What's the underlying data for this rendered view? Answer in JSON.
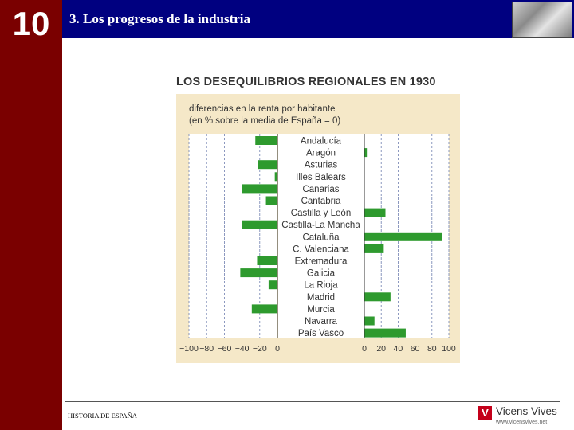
{
  "header": {
    "chapter_number": "10",
    "section_title": "3. Los progresos de la industria"
  },
  "footer": {
    "book_title": "HISTORIA DE ESPAÑA",
    "publisher_name": "Vicens Vives",
    "publisher_url": "www.vicensvives.net",
    "publisher_mark": "V"
  },
  "colors": {
    "sidebar": "#7a0000",
    "topbar": "#000080",
    "panel": "#f5e8c8",
    "bar": "#2e9a2e",
    "label_band": "#ffffff",
    "grid": "#6f7faf"
  },
  "chart_data": {
    "type": "bar",
    "orientation": "horizontal",
    "title": "LOS DESEQUILIBRIOS REGIONALES EN 1930",
    "subtitle_line1": "diferencias en la renta por habitante",
    "subtitle_line2": "(en % sobre la media de España = 0)",
    "categories": [
      "Andalucía",
      "Aragón",
      "Asturias",
      "Illes Balears",
      "Canarias",
      "Cantabria",
      "Castilla y León",
      "Castilla-La Mancha",
      "Cataluña",
      "C. Valenciana",
      "Extremadura",
      "Galicia",
      "La Rioja",
      "Madrid",
      "Murcia",
      "Navarra",
      "País Vasco"
    ],
    "values": [
      -25,
      3,
      -22,
      -3,
      -40,
      -13,
      25,
      -40,
      92,
      23,
      -23,
      -42,
      -10,
      31,
      -29,
      12,
      49
    ],
    "xlim": [
      -100,
      100
    ],
    "ticks_left": [
      "−100",
      "−80",
      "−60",
      "−40",
      "−20",
      "0"
    ],
    "ticks_right": [
      "0",
      "20",
      "40",
      "60",
      "80",
      "100"
    ],
    "grid": true,
    "grid_style": "dashed vertical"
  }
}
